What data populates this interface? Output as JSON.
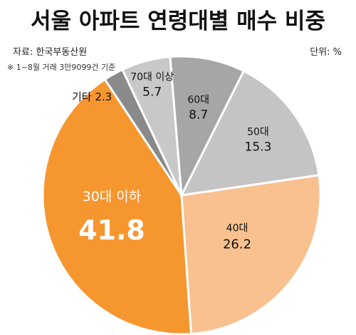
{
  "title": "서울 아파트 연령대별 매수 비중",
  "source": "자료: 한국부동산원",
  "note": "※ 1~8월 거래 3만9099건 기준",
  "unit": "단위: %",
  "chart_data": {
    "type": "pie",
    "slices": [
      {
        "label": "30대 이하",
        "value": 41.8,
        "color": "#f6962f",
        "text_color": "#ffffff"
      },
      {
        "label": "기타",
        "value": 2.3,
        "color": "#8a8a8a",
        "text_color": "#111111"
      },
      {
        "label": "70대 이상",
        "value": 5.7,
        "color": "#c8c8c8",
        "text_color": "#111111"
      },
      {
        "label": "60대",
        "value": 8.7,
        "color": "#a6a6a6",
        "text_color": "#111111"
      },
      {
        "label": "50대",
        "value": 15.3,
        "color": "#c4c4c4",
        "text_color": "#111111"
      },
      {
        "label": "40대",
        "value": 26.2,
        "color": "#f8c18f",
        "text_color": "#111111"
      }
    ]
  }
}
